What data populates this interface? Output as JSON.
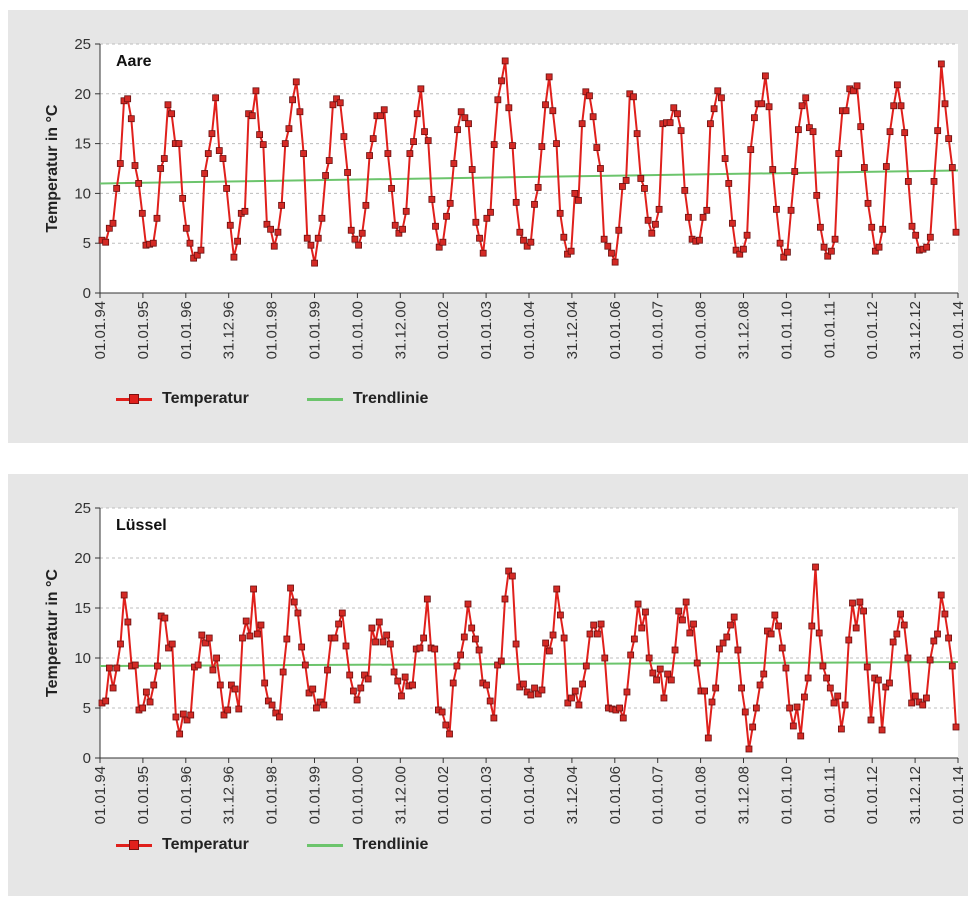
{
  "legend": {
    "temperature": "Temperatur",
    "trend": "Trendlinie"
  },
  "colors": {
    "temperature": "#e0201c",
    "marker_fill": "#d42a25",
    "marker_edge": "#6a1010",
    "trend": "#6cc46c",
    "panel_bg": "#e6e6e6",
    "plot_bg": "#ffffff",
    "grid": "#bdbdbd"
  },
  "chart_data": [
    {
      "type": "line",
      "title": "Aare",
      "ylabel": "Temperatur in °C",
      "xlabel": "",
      "ylim": [
        0,
        25
      ],
      "yticks": [
        0,
        5,
        10,
        15,
        20,
        25
      ],
      "grid": true,
      "legend_position": "bottom-left",
      "x_tick_labels": [
        "01.01.94",
        "01.01.95",
        "01.01.96",
        "31.12.96",
        "01.01.98",
        "01.01.99",
        "01.01.00",
        "31.12.00",
        "01.01.02",
        "01.01.03",
        "01.01.04",
        "31.12.04",
        "01.01.06",
        "01.01.07",
        "01.01.08",
        "31.12.08",
        "01.01.10",
        "01.01.11",
        "01.01.12",
        "31.12.12",
        "01.01.14"
      ],
      "series": [
        {
          "name": "Temperatur",
          "values": [
            5.3,
            5.1,
            6.5,
            7.0,
            10.5,
            13.0,
            19.3,
            19.5,
            17.5,
            12.8,
            11.0,
            8.0,
            4.8,
            4.9,
            5.0,
            7.5,
            12.5,
            13.5,
            18.9,
            18.0,
            15.0,
            15.0,
            9.5,
            6.5,
            5.0,
            3.5,
            3.8,
            4.3,
            12.0,
            14.0,
            16.0,
            19.6,
            14.3,
            13.5,
            10.5,
            6.8,
            3.6,
            5.2,
            8.0,
            8.2,
            18.0,
            17.8,
            20.3,
            15.9,
            14.9,
            6.9,
            6.4,
            4.7,
            6.1,
            8.8,
            15.0,
            16.5,
            19.4,
            21.2,
            18.2,
            14.0,
            5.5,
            4.8,
            3.0,
            5.5,
            7.5,
            11.8,
            13.3,
            18.9,
            19.5,
            19.1,
            15.7,
            12.1,
            6.3,
            5.4,
            4.8,
            6.0,
            8.8,
            13.8,
            15.5,
            17.8,
            17.8,
            18.4,
            14.0,
            10.5,
            6.8,
            6.0,
            6.4,
            8.2,
            14.0,
            15.2,
            18.0,
            20.5,
            16.2,
            15.3,
            9.4,
            6.7,
            4.6,
            5.1,
            7.7,
            9.0,
            13.0,
            16.4,
            18.2,
            17.6,
            17.0,
            12.4,
            7.1,
            5.5,
            4.0,
            7.5,
            8.1,
            14.9,
            19.4,
            21.3,
            23.3,
            18.6,
            14.8,
            9.1,
            6.1,
            5.3,
            4.7,
            5.1,
            8.9,
            10.6,
            14.7,
            18.9,
            21.7,
            18.3,
            15.0,
            8.0,
            5.6,
            3.9,
            4.2,
            10.0,
            9.3,
            17.0,
            20.2,
            19.8,
            17.7,
            14.6,
            12.5,
            5.4,
            4.7,
            4.0,
            3.1,
            6.3,
            10.7,
            11.3,
            20.0,
            19.7,
            16.0,
            11.5,
            10.5,
            7.3,
            6.0,
            6.9,
            8.4,
            17.0,
            17.1,
            17.1,
            18.6,
            18.0,
            16.3,
            10.3,
            7.6,
            5.4,
            5.2,
            5.3,
            7.6,
            8.3,
            17.0,
            18.5,
            20.3,
            19.6,
            13.5,
            11.0,
            7.0,
            4.3,
            3.9,
            4.4,
            5.8,
            14.4,
            17.6,
            19.0,
            19.0,
            21.8,
            18.7,
            12.4,
            8.4,
            5.0,
            3.6,
            4.1,
            8.3,
            12.2,
            16.4,
            18.8,
            19.6,
            16.6,
            16.2,
            9.8,
            6.6,
            4.6,
            3.7,
            4.2,
            5.4,
            14.0,
            18.3,
            18.3,
            20.5,
            20.3,
            20.8,
            16.7,
            12.6,
            9.0,
            6.6,
            4.2,
            4.6,
            6.4,
            12.7,
            16.2,
            18.8,
            20.9,
            18.8,
            16.1,
            11.2,
            6.7,
            5.8,
            4.3,
            4.4,
            4.6,
            5.6,
            11.2,
            16.3,
            23.0,
            19.0,
            15.5,
            12.6,
            6.1
          ]
        },
        {
          "name": "Trendlinie",
          "x": [
            0,
            1
          ],
          "values": [
            11.0,
            12.3
          ]
        }
      ]
    },
    {
      "type": "line",
      "title": "Lüssel",
      "ylabel": "Temperatur in °C",
      "xlabel": "",
      "ylim": [
        0,
        25
      ],
      "yticks": [
        0,
        5,
        10,
        15,
        20,
        25
      ],
      "grid": true,
      "legend_position": "bottom-left",
      "x_tick_labels": [
        "01.01.94",
        "01.01.95",
        "01.01.96",
        "31.12.96",
        "01.01.98",
        "01.01.99",
        "01.01.00",
        "31.12.00",
        "01.01.02",
        "01.01.03",
        "01.01.04",
        "31.12.04",
        "01.01.06",
        "01.01.07",
        "01.01.08",
        "31.12.08",
        "01.01.10",
        "01.01.11",
        "01.01.12",
        "31.12.12",
        "01.01.14"
      ],
      "series": [
        {
          "name": "Temperatur",
          "values": [
            5.5,
            5.7,
            9.0,
            7.0,
            9.0,
            11.4,
            16.3,
            13.6,
            9.2,
            9.3,
            4.8,
            5.0,
            6.6,
            5.6,
            7.3,
            9.2,
            14.2,
            14.0,
            11.0,
            11.4,
            4.1,
            2.4,
            4.4,
            3.8,
            4.3,
            9.1,
            9.3,
            12.3,
            11.5,
            12.0,
            8.8,
            10.0,
            7.3,
            4.3,
            4.8,
            7.3,
            6.9,
            4.9,
            12.0,
            13.7,
            12.2,
            16.9,
            12.4,
            13.3,
            7.5,
            5.7,
            5.3,
            4.5,
            4.1,
            8.6,
            11.9,
            17.0,
            15.6,
            14.5,
            11.1,
            9.3,
            6.5,
            6.9,
            5.0,
            5.6,
            5.3,
            8.8,
            12.0,
            12.0,
            13.4,
            14.5,
            11.2,
            8.3,
            6.7,
            5.8,
            7.0,
            8.3,
            7.9,
            13.0,
            11.6,
            13.6,
            11.6,
            12.3,
            11.4,
            8.6,
            7.7,
            6.2,
            8.1,
            7.2,
            7.3,
            10.9,
            11.0,
            12.0,
            15.9,
            11.0,
            10.9,
            4.8,
            4.6,
            3.3,
            2.4,
            7.5,
            9.2,
            10.3,
            12.1,
            15.4,
            13.0,
            11.9,
            10.8,
            7.5,
            7.3,
            5.7,
            4.0,
            9.3,
            9.7,
            15.9,
            18.7,
            18.2,
            11.4,
            7.1,
            7.4,
            6.6,
            6.3,
            7.0,
            6.4,
            6.8,
            11.5,
            10.7,
            12.3,
            16.9,
            14.3,
            12.0,
            5.5,
            6.0,
            6.7,
            5.3,
            7.4,
            9.2,
            12.4,
            13.3,
            12.4,
            13.4,
            10.0,
            5.0,
            4.9,
            4.8,
            5.0,
            4.0,
            6.6,
            10.3,
            11.9,
            15.4,
            13.0,
            14.6,
            10.0,
            8.5,
            7.8,
            8.9,
            6.0,
            8.4,
            7.8,
            10.8,
            14.7,
            13.8,
            15.6,
            12.5,
            13.4,
            9.5,
            6.7,
            6.7,
            2.0,
            5.6,
            7.0,
            10.9,
            11.5,
            12.1,
            13.3,
            14.1,
            10.8,
            7.0,
            4.6,
            0.9,
            3.1,
            5.0,
            7.3,
            8.4,
            12.7,
            12.4,
            14.3,
            13.2,
            11.0,
            9.0,
            5.0,
            3.2,
            5.1,
            2.2,
            6.1,
            8.0,
            13.2,
            19.1,
            12.5,
            9.2,
            8.0,
            7.0,
            5.5,
            6.2,
            2.9,
            5.3,
            11.8,
            15.5,
            13.0,
            15.6,
            14.7,
            9.1,
            3.8,
            8.0,
            7.8,
            2.8,
            7.1,
            7.5,
            11.6,
            12.4,
            14.4,
            13.3,
            10.0,
            5.5,
            6.2,
            5.6,
            5.3,
            6.0,
            9.8,
            11.7,
            12.4,
            16.3,
            14.4,
            12.0,
            9.2,
            3.1
          ]
        },
        {
          "name": "Trendlinie",
          "x": [
            0,
            1
          ],
          "values": [
            9.2,
            9.6
          ]
        }
      ]
    }
  ]
}
